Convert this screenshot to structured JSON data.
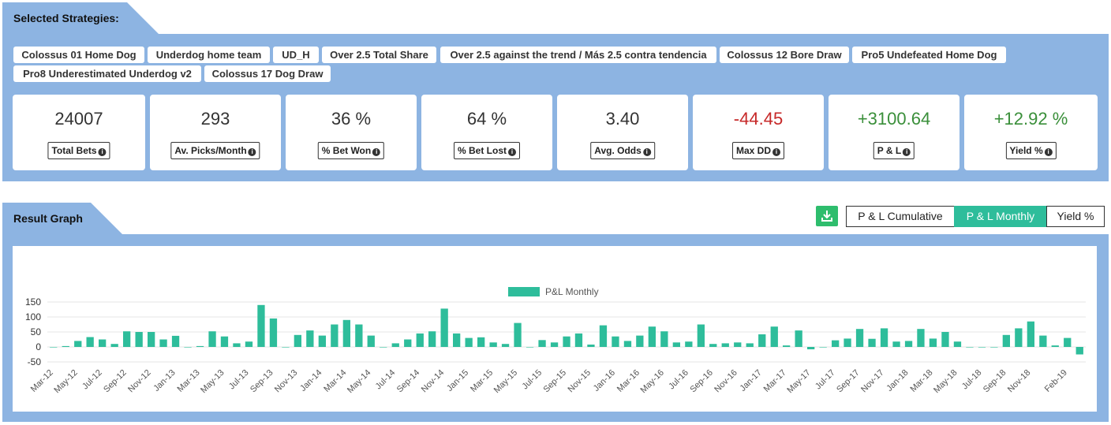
{
  "sections": {
    "strategies_title": "Selected Strategies:",
    "result_title": "Result Graph"
  },
  "strategies": [
    "Colossus 01 Home Dog",
    "Underdog home team",
    "UD_H",
    "Over 2.5 Total Share",
    "Over 2.5 against the trend / Más 2.5 contra tendencia",
    "Colossus 12 Bore Draw",
    "Pro5 Undefeated Home Dog",
    "Pro8 Underestimated Underdog v2",
    "Colossus 17 Dog Draw"
  ],
  "stats": [
    {
      "value": "24007",
      "label": "Total Bets",
      "tone": "neutral"
    },
    {
      "value": "293",
      "label": "Av. Picks/Month",
      "tone": "neutral"
    },
    {
      "value": "36 %",
      "label": "% Bet Won",
      "tone": "neutral"
    },
    {
      "value": "64 %",
      "label": "% Bet Lost",
      "tone": "neutral"
    },
    {
      "value": "3.40",
      "label": "Avg. Odds",
      "tone": "neutral"
    },
    {
      "value": "-44.45",
      "label": "Max DD",
      "tone": "negative"
    },
    {
      "value": "+3100.64",
      "label": "P & L",
      "tone": "positive"
    },
    {
      "value": "+12.92 %",
      "label": "Yield %",
      "tone": "positive"
    }
  ],
  "graph_controls": {
    "download_icon": "download-icon",
    "tabs": [
      "P & L Cumulative",
      "P & L Monthly",
      "Yield %"
    ],
    "active_tab": "P & L Monthly"
  },
  "colors": {
    "panel": "#8db4e2",
    "accent": "#2ebd9b",
    "download": "#2ebd6d",
    "negative": "#c62828",
    "positive": "#3a8f3a"
  },
  "chart_data": {
    "type": "bar",
    "legend": "P&L Monthly",
    "legend_position": "top-center",
    "ylim": [
      -50,
      150
    ],
    "yticks": [
      150,
      100,
      50,
      0,
      -50
    ],
    "grid": true,
    "start": "Mar-12",
    "x_tick_labels": [
      "Mar-12",
      "May-12",
      "Jul-12",
      "Sep-12",
      "Nov-12",
      "Jan-13",
      "Mar-13",
      "May-13",
      "Jul-13",
      "Sep-13",
      "Nov-13",
      "Jan-14",
      "Mar-14",
      "May-14",
      "Jul-14",
      "Sep-14",
      "Nov-14",
      "Jan-15",
      "Mar-15",
      "May-15",
      "Jul-15",
      "Sep-15",
      "Nov-15",
      "Jan-16",
      "Mar-16",
      "May-16",
      "Jul-16",
      "Sep-16",
      "Nov-16",
      "Jan-17",
      "Mar-17",
      "May-17",
      "Jul-17",
      "Sep-17",
      "Nov-17",
      "Jan-18",
      "Mar-18",
      "May-18",
      "Jul-18",
      "Sep-18",
      "Nov-18",
      "Feb-19"
    ],
    "values": [
      0,
      3,
      20,
      33,
      25,
      10,
      52,
      50,
      50,
      25,
      37,
      0,
      3,
      52,
      35,
      12,
      18,
      140,
      95,
      0,
      40,
      55,
      38,
      75,
      90,
      75,
      38,
      0,
      12,
      25,
      45,
      52,
      128,
      45,
      30,
      32,
      15,
      10,
      80,
      0,
      23,
      15,
      35,
      45,
      8,
      72,
      35,
      20,
      38,
      68,
      52,
      15,
      18,
      75,
      10,
      12,
      15,
      12,
      42,
      68,
      5,
      55,
      -8,
      0,
      22,
      28,
      60,
      27,
      62,
      18,
      20,
      60,
      28,
      50,
      18,
      0,
      0,
      0,
      40,
      62,
      85,
      38,
      5,
      30,
      -25
    ]
  }
}
